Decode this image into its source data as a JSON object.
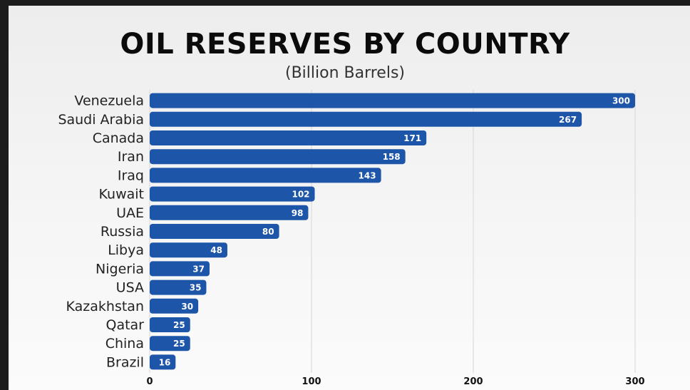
{
  "chart_data": {
    "type": "bar",
    "orientation": "horizontal",
    "title": "OIL RESERVES BY COUNTRY",
    "subtitle": "(Billion Barrels)",
    "xlabel": "",
    "ylabel": "",
    "categories": [
      "Venezuela",
      "Saudi Arabia",
      "Canada",
      "Iran",
      "Iraq",
      "Kuwait",
      "UAE",
      "Russia",
      "Libya",
      "Nigeria",
      "USA",
      "Kazakhstan",
      "Qatar",
      "China",
      "Brazil"
    ],
    "values": [
      300,
      267,
      171,
      158,
      143,
      102,
      98,
      80,
      48,
      37,
      35,
      30,
      25,
      25,
      16
    ],
    "xlim": [
      0,
      300
    ],
    "xticks": [
      0,
      100,
      200,
      300
    ],
    "grid": "vertical",
    "bar_color": "#1d56a8"
  }
}
